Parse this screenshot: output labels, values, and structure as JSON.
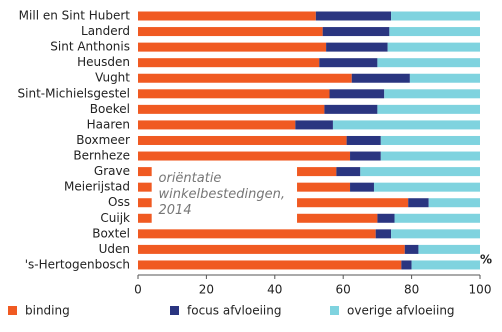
{
  "chart_data": {
    "type": "stacked-barh",
    "categories": [
      "Mill en Sint Hubert",
      "Landerd",
      "Sint Anthonis",
      "Heusden",
      "Vught",
      "Sint-Michielsgestel",
      "Boekel",
      "Haaren",
      "Boxmeer",
      "Bernheze",
      "Grave",
      "Meierijstad",
      "Oss",
      "Cuijk",
      "Boxtel",
      "Uden",
      "'s-Hertogenbosch"
    ],
    "series": [
      {
        "name": "binding",
        "color": "#f05a22",
        "values": [
          52,
          54,
          55,
          53,
          62.5,
          56,
          54.5,
          46,
          61,
          62,
          58,
          62,
          79,
          70,
          69.5,
          78,
          77
        ]
      },
      {
        "name": "focus afvloeiing",
        "color": "#2a3580",
        "values": [
          22,
          19.5,
          18,
          17,
          17,
          16,
          15.5,
          11,
          10,
          9,
          7,
          7,
          6,
          5,
          4.5,
          4,
          3
        ]
      },
      {
        "name": "overige afvloeiing",
        "color": "#7fd3df",
        "values": [
          26,
          26.5,
          27,
          30,
          20.5,
          28,
          30,
          43,
          29,
          29,
          35,
          31,
          15,
          25,
          26,
          18,
          20
        ]
      }
    ],
    "xlim": [
      0,
      100
    ],
    "xticks": [
      0,
      20,
      40,
      60,
      80,
      100
    ],
    "xlabel": "%",
    "annotation": [
      "oriëntatie",
      "winkelbestedingen,",
      "2014"
    ]
  }
}
